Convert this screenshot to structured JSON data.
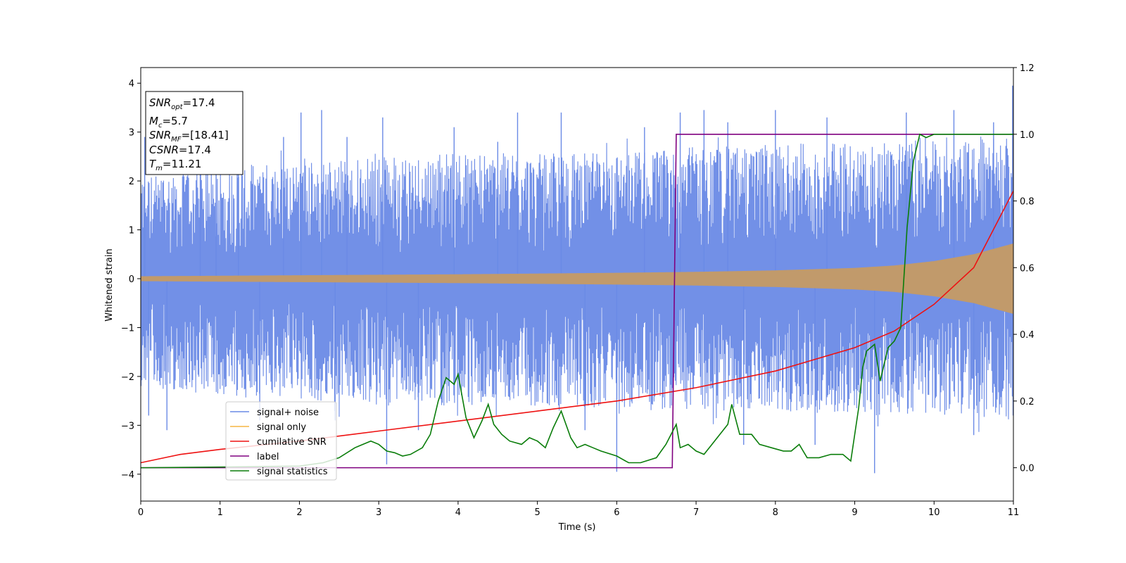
{
  "chart_data": {
    "type": "line",
    "xlabel": "Time (s)",
    "ylabel_left": "Whitened strain",
    "ylabel_right": "",
    "xlim": [
      0,
      11
    ],
    "ylim_left": [
      -4.55,
      4.32
    ],
    "ylim_right": [
      -0.1,
      1.2
    ],
    "x_ticks": [
      0,
      1,
      2,
      3,
      4,
      5,
      6,
      7,
      8,
      9,
      10,
      11
    ],
    "y_left_ticks": [
      -4,
      -3,
      -2,
      -1,
      0,
      1,
      2,
      3,
      4
    ],
    "y_right_ticks": [
      0.0,
      0.2,
      0.4,
      0.6,
      0.8,
      1.0,
      1.2
    ],
    "grid": false,
    "legend_position": "lower-left",
    "annotation": {
      "snr_opt": {
        "name": "SNR",
        "sub": "opt",
        "value": "=17.4"
      },
      "mc": {
        "name": "M",
        "sub": "c",
        "value": "=5.7"
      },
      "snr_mf": {
        "name": "SNR",
        "sub": "MF",
        "value": "=[18.41]"
      },
      "csnr": {
        "name": "CSNR",
        "value": "=17.4"
      },
      "tm": {
        "name": "T",
        "sub": "m",
        "value": "=11.21"
      }
    },
    "series": [
      {
        "name": "signal+ noise",
        "axis": "left",
        "color": "#6a8ae6",
        "description": "whitened noise + signal",
        "envelope_upper": {
          "x": [
            0,
            1,
            2,
            3,
            4,
            5,
            6,
            7,
            8,
            9,
            10,
            11
          ],
          "y": [
            2.1,
            2.3,
            2.4,
            2.5,
            2.6,
            2.55,
            2.6,
            2.7,
            2.75,
            2.8,
            2.9,
            2.95
          ]
        },
        "envelope_lower": {
          "x": [
            0,
            1,
            2,
            3,
            4,
            5,
            6,
            7,
            8,
            9,
            10,
            11
          ],
          "y": [
            -2.2,
            -2.4,
            -2.5,
            -2.6,
            -2.6,
            -2.6,
            -2.65,
            -2.7,
            -2.7,
            -2.8,
            -2.8,
            -2.9
          ]
        },
        "peaks": [
          {
            "x": 0.05,
            "y": 2.9
          },
          {
            "x": 0.1,
            "y": -2.8
          },
          {
            "x": 0.33,
            "y": -3.1
          },
          {
            "x": 0.75,
            "y": 2.7
          },
          {
            "x": 0.95,
            "y": 2.8
          },
          {
            "x": 1.23,
            "y": 2.9
          },
          {
            "x": 1.5,
            "y": -2.9
          },
          {
            "x": 1.8,
            "y": 2.9
          },
          {
            "x": 2.02,
            "y": 3.4
          },
          {
            "x": 2.28,
            "y": 3.45
          },
          {
            "x": 2.45,
            "y": -2.9
          },
          {
            "x": 2.6,
            "y": 2.9
          },
          {
            "x": 3.05,
            "y": 3.3
          },
          {
            "x": 3.1,
            "y": -3.8
          },
          {
            "x": 3.5,
            "y": -3.1
          },
          {
            "x": 3.95,
            "y": 3.1
          },
          {
            "x": 4.5,
            "y": 2.8
          },
          {
            "x": 4.75,
            "y": 3.4
          },
          {
            "x": 5.3,
            "y": 3.4
          },
          {
            "x": 5.6,
            "y": -3.1
          },
          {
            "x": 6.0,
            "y": -3.95
          },
          {
            "x": 6.35,
            "y": 3.1
          },
          {
            "x": 6.8,
            "y": 3.4
          },
          {
            "x": 7.1,
            "y": 3.45
          },
          {
            "x": 7.4,
            "y": 3.2
          },
          {
            "x": 7.6,
            "y": -3.4
          },
          {
            "x": 8.0,
            "y": 3.45
          },
          {
            "x": 8.5,
            "y": -3.4
          },
          {
            "x": 8.65,
            "y": 3.3
          },
          {
            "x": 9.25,
            "y": -3.98
          },
          {
            "x": 9.65,
            "y": 3.4
          },
          {
            "x": 10.25,
            "y": 3.45
          },
          {
            "x": 10.5,
            "y": -3.2
          },
          {
            "x": 10.75,
            "y": 3.2
          },
          {
            "x": 10.99,
            "y": 3.95
          }
        ]
      },
      {
        "name": "signal only",
        "axis": "left",
        "color": "#c19a6b",
        "amplitude": {
          "x": [
            0,
            2,
            4,
            6,
            7,
            8,
            9,
            9.5,
            10,
            10.5,
            11
          ],
          "y": [
            0.05,
            0.07,
            0.09,
            0.12,
            0.14,
            0.17,
            0.22,
            0.27,
            0.36,
            0.5,
            0.72
          ]
        }
      },
      {
        "name": "cumilative SNR",
        "axis": "right",
        "color": "#ee1111",
        "x": [
          0,
          0.5,
          1,
          2,
          3,
          4,
          5,
          6,
          7,
          8,
          9,
          9.5,
          10,
          10.5,
          11
        ],
        "y": [
          0.015,
          0.04,
          0.055,
          0.08,
          0.11,
          0.14,
          0.17,
          0.2,
          0.24,
          0.29,
          0.36,
          0.41,
          0.49,
          0.6,
          0.83
        ]
      },
      {
        "name": "label",
        "axis": "right",
        "color": "#800080",
        "x": [
          0,
          6.7,
          6.75,
          11
        ],
        "y": [
          0,
          0,
          1,
          1
        ]
      },
      {
        "name": "signal statistics",
        "axis": "right",
        "color": "#0a7d0a",
        "x": [
          0,
          1,
          2,
          2.3,
          2.5,
          2.7,
          2.9,
          3.0,
          3.1,
          3.2,
          3.3,
          3.4,
          3.55,
          3.65,
          3.75,
          3.85,
          3.95,
          4.0,
          4.1,
          4.2,
          4.3,
          4.38,
          4.45,
          4.55,
          4.65,
          4.8,
          4.9,
          5.0,
          5.1,
          5.2,
          5.3,
          5.42,
          5.5,
          5.6,
          5.7,
          5.8,
          6.0,
          6.15,
          6.3,
          6.5,
          6.62,
          6.75,
          6.8,
          6.9,
          7.0,
          7.1,
          7.2,
          7.3,
          7.4,
          7.45,
          7.55,
          7.6,
          7.7,
          7.8,
          7.95,
          8.1,
          8.2,
          8.3,
          8.4,
          8.55,
          8.7,
          8.85,
          8.95,
          9.05,
          9.1,
          9.15,
          9.25,
          9.32,
          9.42,
          9.5,
          9.58,
          9.66,
          9.74,
          9.82,
          9.9,
          10.0,
          10.3,
          10.6,
          10.8,
          11.0
        ],
        "y": [
          0,
          0.002,
          0.005,
          0.015,
          0.03,
          0.06,
          0.08,
          0.07,
          0.05,
          0.045,
          0.035,
          0.04,
          0.06,
          0.1,
          0.2,
          0.27,
          0.25,
          0.28,
          0.15,
          0.09,
          0.14,
          0.19,
          0.13,
          0.1,
          0.08,
          0.07,
          0.09,
          0.08,
          0.06,
          0.12,
          0.17,
          0.09,
          0.06,
          0.07,
          0.06,
          0.05,
          0.035,
          0.015,
          0.015,
          0.03,
          0.07,
          0.13,
          0.06,
          0.07,
          0.05,
          0.04,
          0.07,
          0.1,
          0.13,
          0.19,
          0.1,
          0.1,
          0.1,
          0.07,
          0.06,
          0.05,
          0.05,
          0.07,
          0.03,
          0.03,
          0.04,
          0.04,
          0.02,
          0.18,
          0.3,
          0.35,
          0.37,
          0.26,
          0.36,
          0.38,
          0.42,
          0.72,
          0.92,
          1.0,
          0.99,
          1.0,
          1.0,
          1.0,
          1.0,
          1.0
        ]
      }
    ]
  }
}
